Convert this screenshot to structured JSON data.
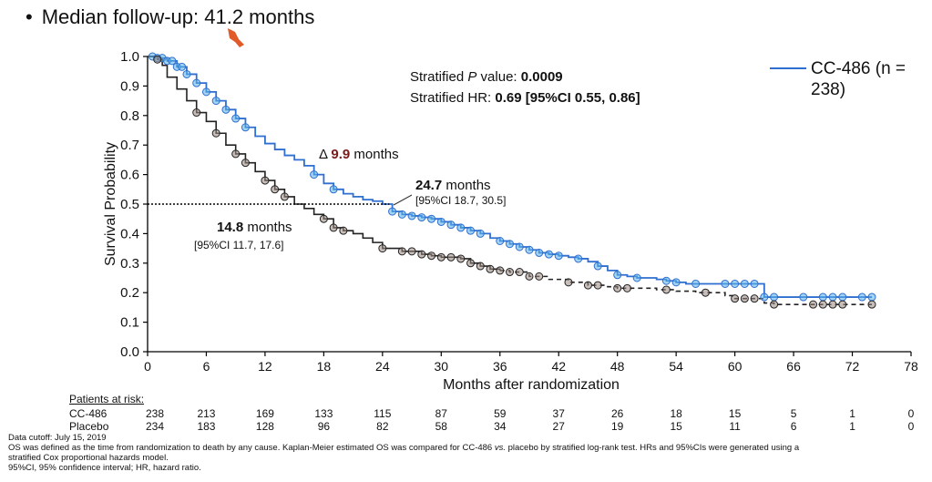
{
  "header": {
    "bullet": "•",
    "followup": "Median follow-up: 41.2 months"
  },
  "chart_data": {
    "type": "line",
    "title": "",
    "xlabel": "Months after randomization",
    "ylabel": "Survival Probability",
    "xlim": [
      0,
      78
    ],
    "ylim": [
      0,
      1
    ],
    "x_ticks": [
      "0",
      "6",
      "12",
      "18",
      "24",
      "30",
      "36",
      "42",
      "48",
      "54",
      "60",
      "66",
      "72",
      "78"
    ],
    "y_ticks": [
      "0.0",
      "0.1",
      "0.2",
      "0.3",
      "0.4",
      "0.5",
      "0.6",
      "0.7",
      "0.8",
      "0.9",
      "1.0"
    ],
    "reference_line": {
      "y": 0.5,
      "x_end": 24.7
    },
    "series": [
      {
        "name": "CC-486",
        "color": "#2f6fd0",
        "marker_color": "#5ab0e8",
        "points": [
          [
            0,
            1.0
          ],
          [
            1,
            0.995
          ],
          [
            2,
            0.985
          ],
          [
            3,
            0.965
          ],
          [
            4,
            0.94
          ],
          [
            5,
            0.91
          ],
          [
            6,
            0.88
          ],
          [
            7,
            0.85
          ],
          [
            8,
            0.82
          ],
          [
            9,
            0.79
          ],
          [
            10,
            0.76
          ],
          [
            11,
            0.73
          ],
          [
            12,
            0.705
          ],
          [
            13,
            0.685
          ],
          [
            14,
            0.665
          ],
          [
            15,
            0.65
          ],
          [
            16,
            0.63
          ],
          [
            17,
            0.6
          ],
          [
            18,
            0.57
          ],
          [
            19,
            0.55
          ],
          [
            20,
            0.535
          ],
          [
            21,
            0.525
          ],
          [
            22,
            0.515
          ],
          [
            23,
            0.51
          ],
          [
            24,
            0.5
          ],
          [
            25,
            0.475
          ],
          [
            26,
            0.465
          ],
          [
            27,
            0.46
          ],
          [
            28,
            0.455
          ],
          [
            29,
            0.45
          ],
          [
            30,
            0.44
          ],
          [
            31,
            0.43
          ],
          [
            32,
            0.42
          ],
          [
            33,
            0.41
          ],
          [
            34,
            0.4
          ],
          [
            35,
            0.385
          ],
          [
            36,
            0.375
          ],
          [
            37,
            0.365
          ],
          [
            38,
            0.355
          ],
          [
            39,
            0.345
          ],
          [
            40,
            0.335
          ],
          [
            41,
            0.33
          ],
          [
            42,
            0.325
          ],
          [
            43,
            0.32
          ],
          [
            44,
            0.315
          ],
          [
            45,
            0.305
          ],
          [
            46,
            0.29
          ],
          [
            47,
            0.275
          ],
          [
            48,
            0.26
          ],
          [
            49,
            0.255
          ],
          [
            50,
            0.25
          ],
          [
            51,
            0.25
          ],
          [
            52,
            0.245
          ],
          [
            53,
            0.24
          ],
          [
            54,
            0.235
          ],
          [
            55,
            0.23
          ],
          [
            56,
            0.23
          ],
          [
            57,
            0.23
          ],
          [
            58,
            0.23
          ],
          [
            59,
            0.23
          ],
          [
            60,
            0.23
          ],
          [
            61,
            0.23
          ],
          [
            62,
            0.23
          ],
          [
            63,
            0.185
          ],
          [
            64,
            0.185
          ],
          [
            66,
            0.185
          ],
          [
            68,
            0.185
          ],
          [
            70,
            0.185
          ],
          [
            72,
            0.185
          ],
          [
            74,
            0.185
          ]
        ],
        "censor_x": [
          0.5,
          1,
          1.5,
          2,
          2.5,
          3,
          3.5,
          4,
          5,
          6,
          7,
          8,
          9,
          10,
          17,
          19,
          25,
          26,
          27,
          28,
          29,
          30,
          31,
          32,
          33,
          34,
          36,
          37,
          38,
          39,
          40,
          41,
          42,
          44,
          46,
          48,
          50,
          53,
          54,
          56,
          59,
          60,
          61,
          62,
          63,
          64,
          67,
          69,
          70,
          71,
          73,
          74
        ]
      },
      {
        "name": "Placebo",
        "color": "#222222",
        "marker_color": "#9a8a84",
        "dashed_from_x": 36,
        "points": [
          [
            0,
            1.0
          ],
          [
            1,
            0.99
          ],
          [
            1.5,
            0.97
          ],
          [
            2,
            0.93
          ],
          [
            3,
            0.89
          ],
          [
            4,
            0.85
          ],
          [
            5,
            0.81
          ],
          [
            6,
            0.78
          ],
          [
            7,
            0.74
          ],
          [
            8,
            0.7
          ],
          [
            9,
            0.67
          ],
          [
            10,
            0.64
          ],
          [
            11,
            0.61
          ],
          [
            12,
            0.58
          ],
          [
            13,
            0.55
          ],
          [
            14,
            0.525
          ],
          [
            15,
            0.5
          ],
          [
            16,
            0.485
          ],
          [
            17,
            0.465
          ],
          [
            18,
            0.45
          ],
          [
            19,
            0.42
          ],
          [
            20,
            0.41
          ],
          [
            21,
            0.4
          ],
          [
            22,
            0.385
          ],
          [
            23,
            0.37
          ],
          [
            24,
            0.35
          ],
          [
            26,
            0.34
          ],
          [
            28,
            0.33
          ],
          [
            29,
            0.325
          ],
          [
            30,
            0.32
          ],
          [
            32,
            0.315
          ],
          [
            33,
            0.3
          ],
          [
            34,
            0.29
          ],
          [
            35,
            0.28
          ],
          [
            36,
            0.275
          ],
          [
            37,
            0.27
          ],
          [
            39,
            0.255
          ],
          [
            41,
            0.245
          ],
          [
            43,
            0.235
          ],
          [
            45,
            0.225
          ],
          [
            47,
            0.22
          ],
          [
            48,
            0.215
          ],
          [
            50,
            0.215
          ],
          [
            52,
            0.21
          ],
          [
            54,
            0.205
          ],
          [
            56,
            0.2
          ],
          [
            58,
            0.2
          ],
          [
            59,
            0.19
          ],
          [
            60,
            0.18
          ],
          [
            62,
            0.18
          ],
          [
            63,
            0.165
          ],
          [
            64,
            0.16
          ],
          [
            66,
            0.16
          ],
          [
            70,
            0.16
          ],
          [
            72,
            0.16
          ],
          [
            74,
            0.16
          ]
        ],
        "censor_x": [
          1,
          5,
          7,
          9,
          10,
          12,
          13,
          14,
          18,
          19,
          20,
          24,
          26,
          27,
          28,
          29,
          30,
          31,
          32,
          33,
          34,
          35,
          36,
          37,
          38,
          39,
          40,
          43,
          45,
          46,
          48,
          49,
          53,
          57,
          60,
          61,
          62,
          64,
          68,
          69,
          70,
          71,
          74
        ]
      }
    ],
    "annotations": {
      "stats_p": [
        "Stratified ",
        "P",
        " value: ",
        "0.0009"
      ],
      "stats_hr": [
        "Stratified HR: ",
        "0.69 [95%CI 0.55, 0.86]"
      ],
      "delta": [
        "Δ ",
        "9.9",
        " months"
      ],
      "cc_median": "24.7",
      "cc_median_unit": " months",
      "cc_ci": "[95%CI 18.7, 30.5]",
      "pl_median": "14.8",
      "pl_median_unit": " months",
      "pl_ci": "[95%CI 11.7, 17.6]"
    },
    "legend": {
      "entry": "CC-486 (n = 238)",
      "position": "top-right"
    }
  },
  "risk_table": {
    "title": "Patients at risk:",
    "rows": [
      {
        "label": "CC-486",
        "values": [
          "238",
          "213",
          "169",
          "133",
          "115",
          "87",
          "59",
          "37",
          "26",
          "18",
          "15",
          "5",
          "1",
          "0"
        ]
      },
      {
        "label": "Placebo",
        "values": [
          "234",
          "183",
          "128",
          "96",
          "82",
          "58",
          "34",
          "27",
          "19",
          "15",
          "11",
          "6",
          "1",
          "0"
        ]
      }
    ]
  },
  "footnotes": {
    "line1": "Data cutoff: July 15, 2019",
    "line2": "OS was defined as the time from randomization to death by any cause. Kaplan-Meier estimated OS was compared for CC-486 vs. placebo by stratified log-rank test. HRs and 95%CIs were generated using a",
    "line3": "stratified Cox proportional hazards model.",
    "line4": "95%CI, 95% confidence interval; HR, hazard ratio."
  },
  "colors": {
    "cc486": "#2f6fd0",
    "placebo": "#222222",
    "pointer": "#e05a2a",
    "delta_value": "#7a1a1a"
  }
}
